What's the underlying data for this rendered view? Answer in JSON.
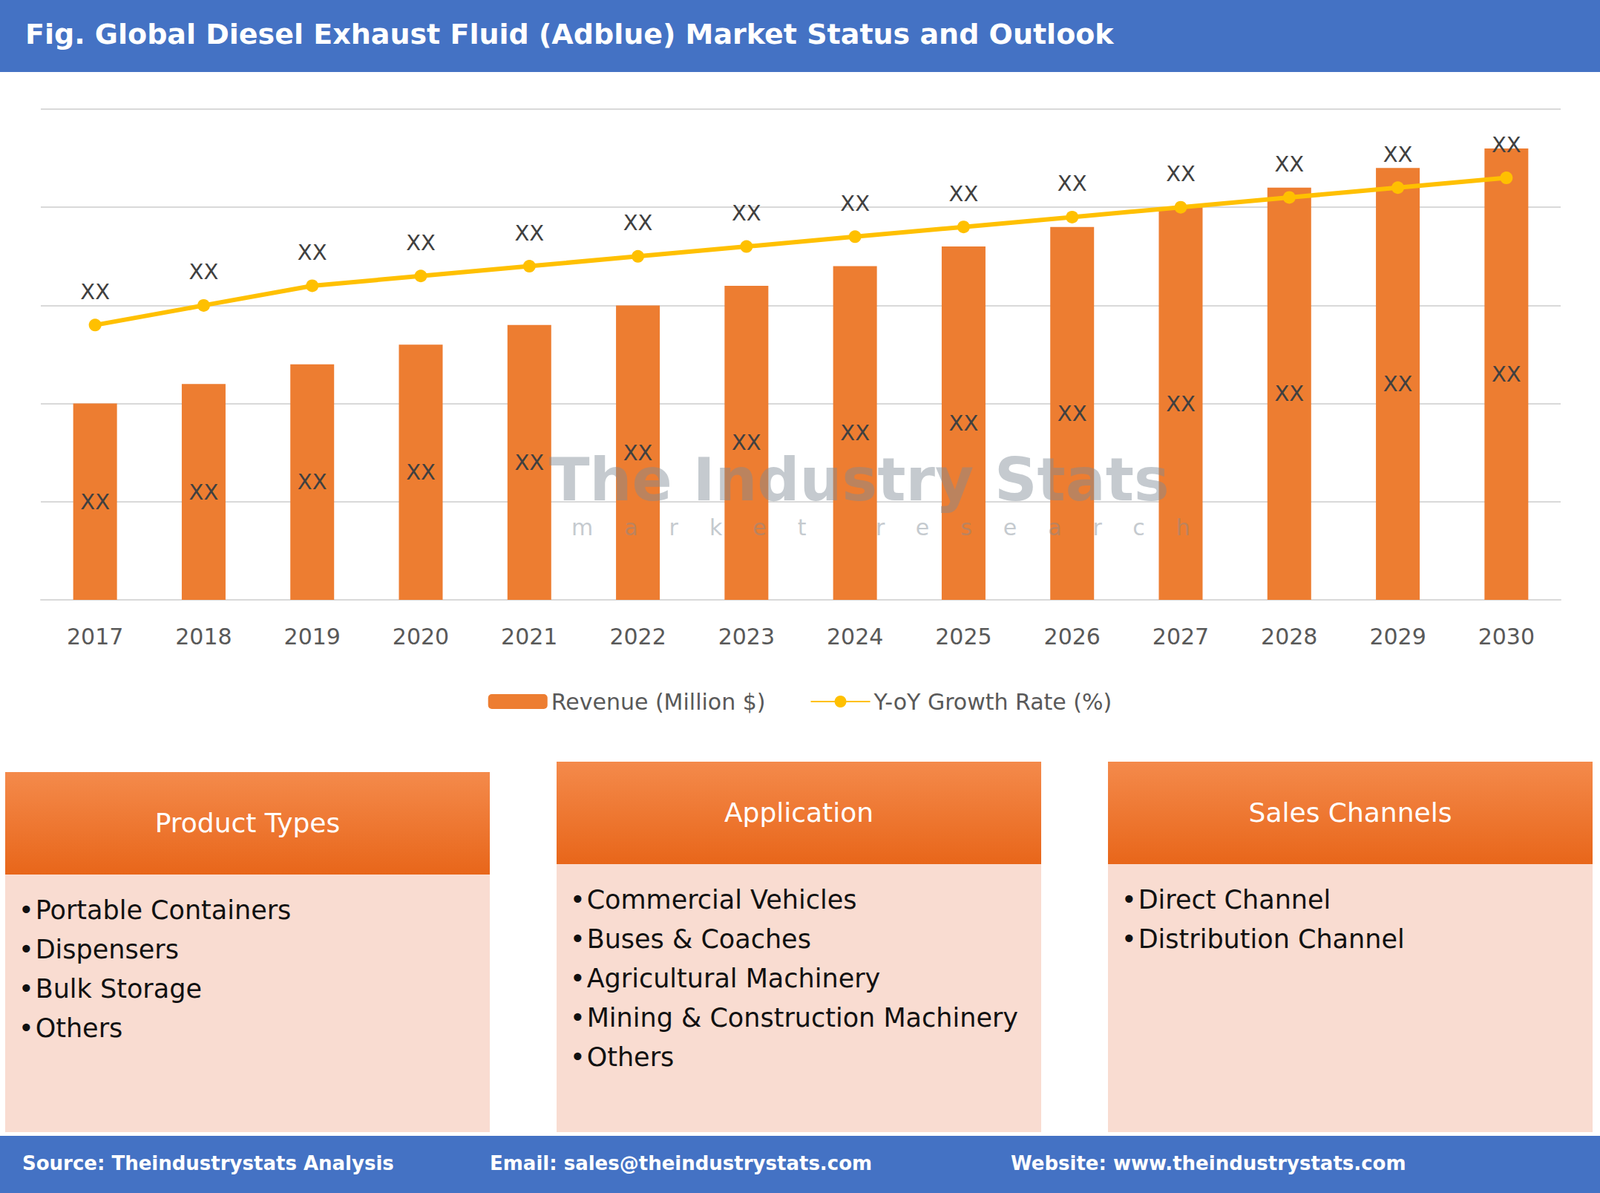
{
  "chart_data": {
    "type": "bar",
    "title": "Fig. Global Diesel Exhaust Fluid (Adblue) Market Status and Outlook",
    "categories": [
      "2017",
      "2018",
      "2019",
      "2020",
      "2021",
      "2022",
      "2023",
      "2024",
      "2025",
      "2026",
      "2027",
      "2028",
      "2029",
      "2030"
    ],
    "series": [
      {
        "name": "Revenue (Million $)",
        "type": "bar",
        "color": "#ED7D31",
        "values": [
          2.0,
          2.2,
          2.4,
          2.6,
          2.8,
          3.0,
          3.2,
          3.4,
          3.6,
          3.8,
          4.0,
          4.2,
          4.4,
          4.6
        ],
        "value_labels": [
          "XX",
          "XX",
          "XX",
          "XX",
          "XX",
          "XX",
          "XX",
          "XX",
          "XX",
          "XX",
          "XX",
          "XX",
          "XX",
          "XX"
        ]
      },
      {
        "name": "Y-oY Growth Rate (%)",
        "type": "line",
        "color": "#FFC000",
        "marker": "circle",
        "values": [
          2.8,
          3.0,
          3.2,
          3.3,
          3.4,
          3.5,
          3.6,
          3.7,
          3.8,
          3.9,
          4.0,
          4.1,
          4.2,
          4.3
        ],
        "value_labels": [
          "XX",
          "XX",
          "XX",
          "XX",
          "XX",
          "XX",
          "XX",
          "XX",
          "XX",
          "XX",
          "XX",
          "XX",
          "XX",
          "XX"
        ]
      }
    ],
    "ylim": [
      0,
      5
    ],
    "yticks": [
      0,
      1,
      2,
      3,
      4,
      5
    ],
    "grid": true,
    "legend": "bottom",
    "data_labels": true,
    "tick_labels": "x"
  },
  "watermark": {
    "text": "The Industry Stats",
    "subtitle": "market research"
  },
  "panels": [
    {
      "title": "Product Types",
      "items": [
        "Portable Containers",
        "Dispensers",
        "Bulk Storage",
        "Others"
      ]
    },
    {
      "title": "Application",
      "items": [
        "Commercial Vehicles",
        "Buses & Coaches",
        "Agricultural Machinery",
        "Mining & Construction Machinery",
        "Others"
      ]
    },
    {
      "title": "Sales Channels",
      "items": [
        "Direct Channel",
        "Distribution Channel"
      ]
    }
  ],
  "footer": [
    "Source: Theindustrystats Analysis",
    "Email: sales@theindustrystats.com",
    "Website: www.theindustrystats.com"
  ]
}
